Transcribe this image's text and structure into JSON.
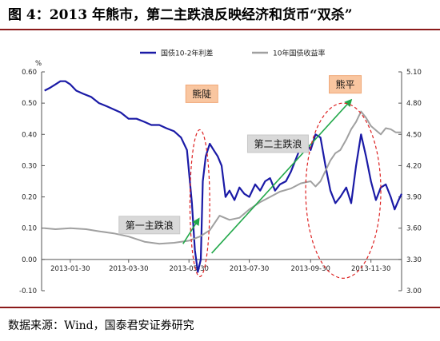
{
  "title": "图 4：2013 年熊市，第二主跌浪反映经济和货币“双杀”",
  "source": "数据来源：Wind，国泰君安证券研究",
  "chart_data": {
    "type": "line",
    "left_axis": {
      "unit": "%",
      "ylim": [
        -0.1,
        0.6
      ],
      "ticks": [
        "0.60",
        "0.50",
        "0.40",
        "0.30",
        "0.20",
        "0.10",
        "0.00",
        "-0.10"
      ]
    },
    "right_axis": {
      "ylim": [
        3.0,
        5.1
      ],
      "ticks": [
        "5.10",
        "4.80",
        "4.50",
        "4.20",
        "3.90",
        "3.60",
        "3.30",
        "3.00"
      ]
    },
    "x_ticks": [
      "2013-01-30",
      "2013-03-30",
      "2013-05-30",
      "2013-07-30",
      "2013-09-30",
      "2013-11-30"
    ],
    "x_range": [
      "2013-01-01",
      "2013-12-31"
    ],
    "grid": false,
    "legend_position": "top-center",
    "series": [
      {
        "name": "国债10-2年利差",
        "axis": "left",
        "color": "#1a1aa6",
        "points": [
          [
            "2013-01-04",
            0.54
          ],
          [
            "2013-01-10",
            0.55
          ],
          [
            "2013-01-15",
            0.56
          ],
          [
            "2013-01-20",
            0.57
          ],
          [
            "2013-01-25",
            0.57
          ],
          [
            "2013-01-30",
            0.56
          ],
          [
            "2013-02-05",
            0.54
          ],
          [
            "2013-02-12",
            0.53
          ],
          [
            "2013-02-20",
            0.52
          ],
          [
            "2013-02-28",
            0.5
          ],
          [
            "2013-03-08",
            0.49
          ],
          [
            "2013-03-15",
            0.48
          ],
          [
            "2013-03-22",
            0.47
          ],
          [
            "2013-03-30",
            0.45
          ],
          [
            "2013-04-07",
            0.45
          ],
          [
            "2013-04-15",
            0.44
          ],
          [
            "2013-04-22",
            0.43
          ],
          [
            "2013-04-30",
            0.43
          ],
          [
            "2013-05-07",
            0.42
          ],
          [
            "2013-05-15",
            0.41
          ],
          [
            "2013-05-22",
            0.39
          ],
          [
            "2013-05-28",
            0.35
          ],
          [
            "2013-06-02",
            0.18
          ],
          [
            "2013-06-05",
            0.03
          ],
          [
            "2013-06-08",
            -0.04
          ],
          [
            "2013-06-11",
            0.0
          ],
          [
            "2013-06-13",
            0.25
          ],
          [
            "2013-06-16",
            0.33
          ],
          [
            "2013-06-20",
            0.37
          ],
          [
            "2013-06-24",
            0.35
          ],
          [
            "2013-06-28",
            0.33
          ],
          [
            "2013-07-02",
            0.3
          ],
          [
            "2013-07-06",
            0.2
          ],
          [
            "2013-07-10",
            0.22
          ],
          [
            "2013-07-15",
            0.19
          ],
          [
            "2013-07-20",
            0.23
          ],
          [
            "2013-07-25",
            0.21
          ],
          [
            "2013-07-30",
            0.2
          ],
          [
            "2013-08-05",
            0.24
          ],
          [
            "2013-08-10",
            0.22
          ],
          [
            "2013-08-15",
            0.25
          ],
          [
            "2013-08-20",
            0.26
          ],
          [
            "2013-08-25",
            0.22
          ],
          [
            "2013-08-30",
            0.24
          ],
          [
            "2013-09-05",
            0.25
          ],
          [
            "2013-09-10",
            0.28
          ],
          [
            "2013-09-15",
            0.32
          ],
          [
            "2013-09-20",
            0.36
          ],
          [
            "2013-09-25",
            0.38
          ],
          [
            "2013-09-30",
            0.35
          ],
          [
            "2013-10-05",
            0.4
          ],
          [
            "2013-10-10",
            0.39
          ],
          [
            "2013-10-15",
            0.3
          ],
          [
            "2013-10-20",
            0.22
          ],
          [
            "2013-10-25",
            0.18
          ],
          [
            "2013-10-30",
            0.2
          ],
          [
            "2013-11-05",
            0.23
          ],
          [
            "2013-11-10",
            0.18
          ],
          [
            "2013-11-15",
            0.3
          ],
          [
            "2013-11-20",
            0.4
          ],
          [
            "2013-11-25",
            0.33
          ],
          [
            "2013-11-30",
            0.25
          ],
          [
            "2013-12-05",
            0.19
          ],
          [
            "2013-12-10",
            0.23
          ],
          [
            "2013-12-15",
            0.24
          ],
          [
            "2013-12-20",
            0.2
          ],
          [
            "2013-12-24",
            0.16
          ],
          [
            "2013-12-28",
            0.19
          ],
          [
            "2013-12-31",
            0.21
          ]
        ]
      },
      {
        "name": "10年国债收益率",
        "axis": "right",
        "color": "#a0a0a0",
        "points": [
          [
            "2013-01-04",
            3.6
          ],
          [
            "2013-01-15",
            3.59
          ],
          [
            "2013-01-30",
            3.6
          ],
          [
            "2013-02-15",
            3.59
          ],
          [
            "2013-02-28",
            3.57
          ],
          [
            "2013-03-15",
            3.55
          ],
          [
            "2013-03-30",
            3.52
          ],
          [
            "2013-04-15",
            3.47
          ],
          [
            "2013-04-30",
            3.45
          ],
          [
            "2013-05-15",
            3.46
          ],
          [
            "2013-05-30",
            3.48
          ],
          [
            "2013-06-10",
            3.52
          ],
          [
            "2013-06-20",
            3.58
          ],
          [
            "2013-06-30",
            3.72
          ],
          [
            "2013-07-10",
            3.68
          ],
          [
            "2013-07-20",
            3.7
          ],
          [
            "2013-07-30",
            3.78
          ],
          [
            "2013-08-10",
            3.85
          ],
          [
            "2013-08-20",
            3.9
          ],
          [
            "2013-08-30",
            3.95
          ],
          [
            "2013-09-10",
            3.98
          ],
          [
            "2013-09-20",
            4.03
          ],
          [
            "2013-09-30",
            4.05
          ],
          [
            "2013-10-05",
            4.0
          ],
          [
            "2013-10-10",
            4.05
          ],
          [
            "2013-10-15",
            4.15
          ],
          [
            "2013-10-20",
            4.25
          ],
          [
            "2013-10-25",
            4.32
          ],
          [
            "2013-10-30",
            4.35
          ],
          [
            "2013-11-05",
            4.45
          ],
          [
            "2013-11-10",
            4.55
          ],
          [
            "2013-11-15",
            4.62
          ],
          [
            "2013-11-20",
            4.72
          ],
          [
            "2013-11-25",
            4.66
          ],
          [
            "2013-11-30",
            4.58
          ],
          [
            "2013-12-05",
            4.54
          ],
          [
            "2013-12-10",
            4.5
          ],
          [
            "2013-12-15",
            4.56
          ],
          [
            "2013-12-20",
            4.55
          ],
          [
            "2013-12-25",
            4.52
          ],
          [
            "2013-12-31",
            4.52
          ]
        ]
      }
    ],
    "annotations": [
      {
        "text": "熊陡",
        "style": "orange-box",
        "at": [
          "2013-06-12",
          0.53
        ],
        "ellipse": {
          "center": [
            "2013-06-10",
            0.18
          ],
          "half_width_days": 10,
          "half_height": 0.235
        }
      },
      {
        "text": "熊平",
        "style": "orange-box",
        "at": [
          "2013-11-04",
          0.56
        ],
        "ellipse": {
          "center": [
            "2013-11-02",
            0.22
          ],
          "half_width_days": 38,
          "half_height": 0.28
        }
      },
      {
        "text": "第一主跌浪",
        "style": "gray-box",
        "at": [
          "2013-04-20",
          0.11
        ]
      },
      {
        "text": "第二主跌浪",
        "style": "gray-box",
        "at": [
          "2013-08-28",
          0.37
        ]
      }
    ],
    "arrows": [
      {
        "from": [
          "2013-05-24",
          0.05
        ],
        "to": [
          "2013-06-09",
          0.13
        ]
      },
      {
        "from": [
          "2013-06-22",
          0.02
        ],
        "to": [
          "2013-11-10",
          0.51
        ]
      }
    ]
  }
}
